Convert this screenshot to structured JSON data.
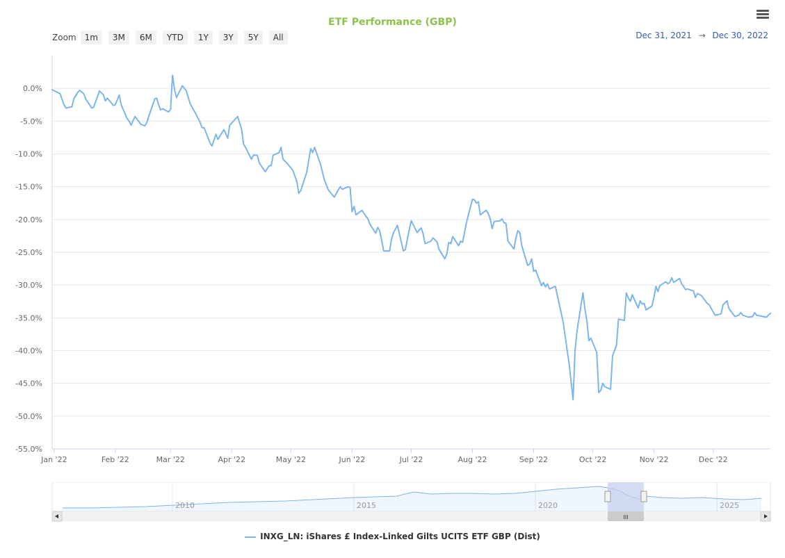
{
  "header": {
    "title": "ETF Performance (GBP)",
    "zoom_label": "Zoom",
    "zoom_buttons": [
      "1m",
      "3M",
      "6M",
      "YTD",
      "1Y",
      "3Y",
      "5Y",
      "All"
    ],
    "range_from": "Dec 31, 2021",
    "range_arrow": "→",
    "range_to": "Dec 30, 2022",
    "menu_icon": "hamburger-menu-icon"
  },
  "colors": {
    "title": "#8bc34a",
    "series": "#7cb5ec",
    "range_text": "#335cad",
    "navigator_mask": "#c5d0ec"
  },
  "navigator": {
    "year_labels": [
      "2010",
      "2015",
      "2020",
      "2025"
    ],
    "handle_glyph": "III"
  },
  "legend": {
    "series_name": "INXG_LN: iShares £ Index-Linked Gilts UCITS ETF GBP (Dist)"
  },
  "chart_data": {
    "type": "line",
    "title": "ETF Performance (GBP)",
    "xlabel": "",
    "ylabel": "",
    "ylim": [
      -55,
      5
    ],
    "y_ticks": [
      0,
      -5,
      -10,
      -15,
      -20,
      -25,
      -30,
      -35,
      -40,
      -45,
      -50,
      -55
    ],
    "y_tick_labels": [
      "0.0%",
      "-5.0%",
      "-10.0%",
      "-15.0%",
      "-20.0%",
      "-25.0%",
      "-30.0%",
      "-35.0%",
      "-40.0%",
      "-45.0%",
      "-50.0%",
      "-55.0%"
    ],
    "x_range": [
      "2021-12-31",
      "2022-12-30"
    ],
    "x_ticks": [
      "2022-01-01",
      "2022-02-01",
      "2022-03-01",
      "2022-04-01",
      "2022-05-01",
      "2022-06-01",
      "2022-07-01",
      "2022-08-01",
      "2022-09-01",
      "2022-10-01",
      "2022-11-01",
      "2022-12-01"
    ],
    "x_tick_labels": [
      "Jan '22",
      "Feb '22",
      "Mar '22",
      "Apr '22",
      "May '22",
      "Jun '22",
      "Jul '22",
      "Aug '22",
      "Sep '22",
      "Oct '22",
      "Nov '22",
      "Dec '22"
    ],
    "grid": true,
    "legend_position": "bottom-center",
    "series": [
      {
        "name": "INXG_LN: iShares £ Index-Linked Gilts UCITS ETF GBP (Dist)",
        "points": [
          [
            "2021-12-31",
            -0.2
          ],
          [
            "2022-01-04",
            -0.8
          ],
          [
            "2022-01-06",
            -2.5
          ],
          [
            "2022-01-07",
            -3.0
          ],
          [
            "2022-01-10",
            -2.8
          ],
          [
            "2022-01-11",
            -1.6
          ],
          [
            "2022-01-13",
            -0.6
          ],
          [
            "2022-01-14",
            -0.3
          ],
          [
            "2022-01-16",
            -0.8
          ],
          [
            "2022-01-17",
            -1.6
          ],
          [
            "2022-01-19",
            -2.5
          ],
          [
            "2022-01-20",
            -3.0
          ],
          [
            "2022-01-21",
            -2.9
          ],
          [
            "2022-01-24",
            -0.4
          ],
          [
            "2022-01-26",
            -1.0
          ],
          [
            "2022-01-27",
            -1.9
          ],
          [
            "2022-01-28",
            -1.5
          ],
          [
            "2022-01-31",
            -2.6
          ],
          [
            "2022-02-01",
            -2.5
          ],
          [
            "2022-02-03",
            -1.0
          ],
          [
            "2022-02-04",
            -2.5
          ],
          [
            "2022-02-07",
            -4.6
          ],
          [
            "2022-02-08",
            -5.0
          ],
          [
            "2022-02-09",
            -5.6
          ],
          [
            "2022-02-11",
            -4.3
          ],
          [
            "2022-02-14",
            -5.5
          ],
          [
            "2022-02-15",
            -5.6
          ],
          [
            "2022-02-16",
            -5.7
          ],
          [
            "2022-02-17",
            -5.2
          ],
          [
            "2022-02-18",
            -4.2
          ],
          [
            "2022-02-21",
            -1.6
          ],
          [
            "2022-02-22",
            -1.5
          ],
          [
            "2022-02-23",
            -2.5
          ],
          [
            "2022-02-24",
            -3.3
          ],
          [
            "2022-02-25",
            -3.1
          ],
          [
            "2022-02-28",
            -3.6
          ],
          [
            "2022-03-01",
            -3.2
          ],
          [
            "2022-03-02",
            2.0
          ],
          [
            "2022-03-03",
            -0.2
          ],
          [
            "2022-03-04",
            -1.4
          ],
          [
            "2022-03-07",
            0.4
          ],
          [
            "2022-03-09",
            -0.4
          ],
          [
            "2022-03-10",
            -1.4
          ],
          [
            "2022-03-11",
            -2.4
          ],
          [
            "2022-03-14",
            -4.0
          ],
          [
            "2022-03-16",
            -5.2
          ],
          [
            "2022-03-17",
            -6.0
          ],
          [
            "2022-03-18",
            -6.0
          ],
          [
            "2022-03-21",
            -8.3
          ],
          [
            "2022-03-22",
            -8.8
          ],
          [
            "2022-03-24",
            -7.0
          ],
          [
            "2022-03-25",
            -7.8
          ],
          [
            "2022-03-28",
            -6.3
          ],
          [
            "2022-03-30",
            -7.6
          ],
          [
            "2022-03-31",
            -5.6
          ],
          [
            "2022-04-04",
            -4.3
          ],
          [
            "2022-04-06",
            -6.2
          ],
          [
            "2022-04-07",
            -8.5
          ],
          [
            "2022-04-08",
            -9.0
          ],
          [
            "2022-04-11",
            -10.8
          ],
          [
            "2022-04-12",
            -10.2
          ],
          [
            "2022-04-14",
            -10.2
          ],
          [
            "2022-04-15",
            -11.4
          ],
          [
            "2022-04-18",
            -12.7
          ],
          [
            "2022-04-20",
            -11.8
          ],
          [
            "2022-04-21",
            -11.8
          ],
          [
            "2022-04-22",
            -10.2
          ],
          [
            "2022-04-25",
            -9.8
          ],
          [
            "2022-04-26",
            -9.0
          ],
          [
            "2022-04-27",
            -10.8
          ],
          [
            "2022-04-29",
            -11.4
          ],
          [
            "2022-05-02",
            -12.5
          ],
          [
            "2022-05-04",
            -14.2
          ],
          [
            "2022-05-05",
            -16.0
          ],
          [
            "2022-05-06",
            -15.6
          ],
          [
            "2022-05-09",
            -12.8
          ],
          [
            "2022-05-11",
            -9.2
          ],
          [
            "2022-05-12",
            -9.8
          ],
          [
            "2022-05-13",
            -9.0
          ],
          [
            "2022-05-16",
            -11.6
          ],
          [
            "2022-05-18",
            -14.0
          ],
          [
            "2022-05-20",
            -15.5
          ],
          [
            "2022-05-23",
            -16.6
          ],
          [
            "2022-05-25",
            -15.5
          ],
          [
            "2022-05-26",
            -15.0
          ],
          [
            "2022-05-27",
            -15.4
          ],
          [
            "2022-05-30",
            -15.0
          ],
          [
            "2022-05-31",
            -15.1
          ],
          [
            "2022-06-01",
            -18.8
          ],
          [
            "2022-06-02",
            -18.0
          ],
          [
            "2022-06-03",
            -19.3
          ],
          [
            "2022-06-06",
            -18.6
          ],
          [
            "2022-06-08",
            -19.5
          ],
          [
            "2022-06-09",
            -19.9
          ],
          [
            "2022-06-10",
            -20.7
          ],
          [
            "2022-06-13",
            -22.1
          ],
          [
            "2022-06-14",
            -21.2
          ],
          [
            "2022-06-15",
            -21.7
          ],
          [
            "2022-06-16",
            -23.2
          ],
          [
            "2022-06-17",
            -24.8
          ],
          [
            "2022-06-20",
            -24.8
          ],
          [
            "2022-06-21",
            -23.0
          ],
          [
            "2022-06-22",
            -22.0
          ],
          [
            "2022-06-24",
            -20.9
          ],
          [
            "2022-06-27",
            -24.8
          ],
          [
            "2022-06-28",
            -24.6
          ],
          [
            "2022-06-30",
            -21.5
          ],
          [
            "2022-07-01",
            -20.2
          ],
          [
            "2022-07-04",
            -22.0
          ],
          [
            "2022-07-05",
            -21.6
          ],
          [
            "2022-07-06",
            -21.3
          ],
          [
            "2022-07-07",
            -22.2
          ],
          [
            "2022-07-08",
            -23.7
          ],
          [
            "2022-07-11",
            -23.3
          ],
          [
            "2022-07-12",
            -22.8
          ],
          [
            "2022-07-14",
            -23.4
          ],
          [
            "2022-07-15",
            -24.5
          ],
          [
            "2022-07-18",
            -26.0
          ],
          [
            "2022-07-19",
            -25.3
          ],
          [
            "2022-07-20",
            -23.5
          ],
          [
            "2022-07-21",
            -23.7
          ],
          [
            "2022-07-22",
            -22.6
          ],
          [
            "2022-07-25",
            -24.0
          ],
          [
            "2022-07-26",
            -23.3
          ],
          [
            "2022-07-27",
            -23.5
          ],
          [
            "2022-07-29",
            -20.4
          ],
          [
            "2022-08-01",
            -16.9
          ],
          [
            "2022-08-02",
            -17.0
          ],
          [
            "2022-08-03",
            -17.5
          ],
          [
            "2022-08-04",
            -17.3
          ],
          [
            "2022-08-05",
            -19.3
          ],
          [
            "2022-08-08",
            -18.6
          ],
          [
            "2022-08-09",
            -19.1
          ],
          [
            "2022-08-10",
            -19.9
          ],
          [
            "2022-08-11",
            -21.4
          ],
          [
            "2022-08-12",
            -20.3
          ],
          [
            "2022-08-15",
            -20.2
          ],
          [
            "2022-08-16",
            -19.9
          ],
          [
            "2022-08-17",
            -20.5
          ],
          [
            "2022-08-18",
            -20.6
          ],
          [
            "2022-08-19",
            -23.3
          ],
          [
            "2022-08-22",
            -24.5
          ],
          [
            "2022-08-23",
            -22.9
          ],
          [
            "2022-08-24",
            -21.7
          ],
          [
            "2022-08-25",
            -22.0
          ],
          [
            "2022-08-26",
            -24.0
          ],
          [
            "2022-08-29",
            -27.0
          ],
          [
            "2022-08-30",
            -26.8
          ],
          [
            "2022-08-31",
            -26.0
          ],
          [
            "2022-09-01",
            -27.9
          ],
          [
            "2022-09-02",
            -27.7
          ],
          [
            "2022-09-05",
            -30.1
          ],
          [
            "2022-09-06",
            -29.6
          ],
          [
            "2022-09-07",
            -30.3
          ],
          [
            "2022-09-08",
            -29.8
          ],
          [
            "2022-09-09",
            -30.6
          ],
          [
            "2022-09-12",
            -30.2
          ],
          [
            "2022-09-16",
            -35.7
          ],
          [
            "2022-09-19",
            -42.0
          ],
          [
            "2022-09-21",
            -47.5
          ],
          [
            "2022-09-22",
            -40.0
          ],
          [
            "2022-09-23",
            -37.0
          ],
          [
            "2022-09-26",
            -31.2
          ],
          [
            "2022-09-27",
            -33.6
          ],
          [
            "2022-09-28",
            -35.5
          ],
          [
            "2022-09-29",
            -38.5
          ],
          [
            "2022-09-30",
            -38.1
          ],
          [
            "2022-10-03",
            -40.3
          ],
          [
            "2022-10-04",
            -46.4
          ],
          [
            "2022-10-05",
            -46.1
          ],
          [
            "2022-10-06",
            -45.0
          ],
          [
            "2022-10-07",
            -45.5
          ],
          [
            "2022-10-10",
            -45.9
          ],
          [
            "2022-10-11",
            -40.8
          ],
          [
            "2022-10-13",
            -39.2
          ],
          [
            "2022-10-14",
            -35.2
          ],
          [
            "2022-10-17",
            -35.4
          ],
          [
            "2022-10-18",
            -31.2
          ],
          [
            "2022-10-19",
            -32.0
          ],
          [
            "2022-10-20",
            -32.5
          ],
          [
            "2022-10-21",
            -31.5
          ],
          [
            "2022-10-24",
            -33.5
          ],
          [
            "2022-10-25",
            -32.4
          ],
          [
            "2022-10-26",
            -32.9
          ],
          [
            "2022-10-27",
            -32.8
          ],
          [
            "2022-10-28",
            -33.8
          ],
          [
            "2022-10-31",
            -33.2
          ],
          [
            "2022-11-01",
            -31.8
          ],
          [
            "2022-11-02",
            -30.2
          ],
          [
            "2022-11-03",
            -31.0
          ],
          [
            "2022-11-04",
            -30.1
          ],
          [
            "2022-11-07",
            -29.5
          ],
          [
            "2022-11-08",
            -29.8
          ],
          [
            "2022-11-09",
            -29.6
          ],
          [
            "2022-11-10",
            -28.9
          ],
          [
            "2022-11-11",
            -29.6
          ],
          [
            "2022-11-14",
            -29.0
          ],
          [
            "2022-11-15",
            -29.8
          ],
          [
            "2022-11-16",
            -30.2
          ],
          [
            "2022-11-17",
            -30.7
          ],
          [
            "2022-11-18",
            -30.6
          ],
          [
            "2022-11-21",
            -30.9
          ],
          [
            "2022-11-22",
            -31.9
          ],
          [
            "2022-11-23",
            -31.3
          ],
          [
            "2022-11-25",
            -31.6
          ],
          [
            "2022-11-28",
            -32.8
          ],
          [
            "2022-11-29",
            -33.0
          ],
          [
            "2022-11-30",
            -33.6
          ],
          [
            "2022-12-02",
            -34.6
          ],
          [
            "2022-12-05",
            -34.4
          ],
          [
            "2022-12-06",
            -33.0
          ],
          [
            "2022-12-08",
            -32.4
          ],
          [
            "2022-12-09",
            -33.6
          ],
          [
            "2022-12-12",
            -34.8
          ],
          [
            "2022-12-14",
            -34.6
          ],
          [
            "2022-12-15",
            -34.2
          ],
          [
            "2022-12-16",
            -34.6
          ],
          [
            "2022-12-19",
            -34.9
          ],
          [
            "2022-12-21",
            -34.8
          ],
          [
            "2022-12-22",
            -34.2
          ],
          [
            "2022-12-23",
            -34.6
          ],
          [
            "2022-12-28",
            -34.9
          ],
          [
            "2022-12-30",
            -34.3
          ]
        ]
      }
    ]
  }
}
